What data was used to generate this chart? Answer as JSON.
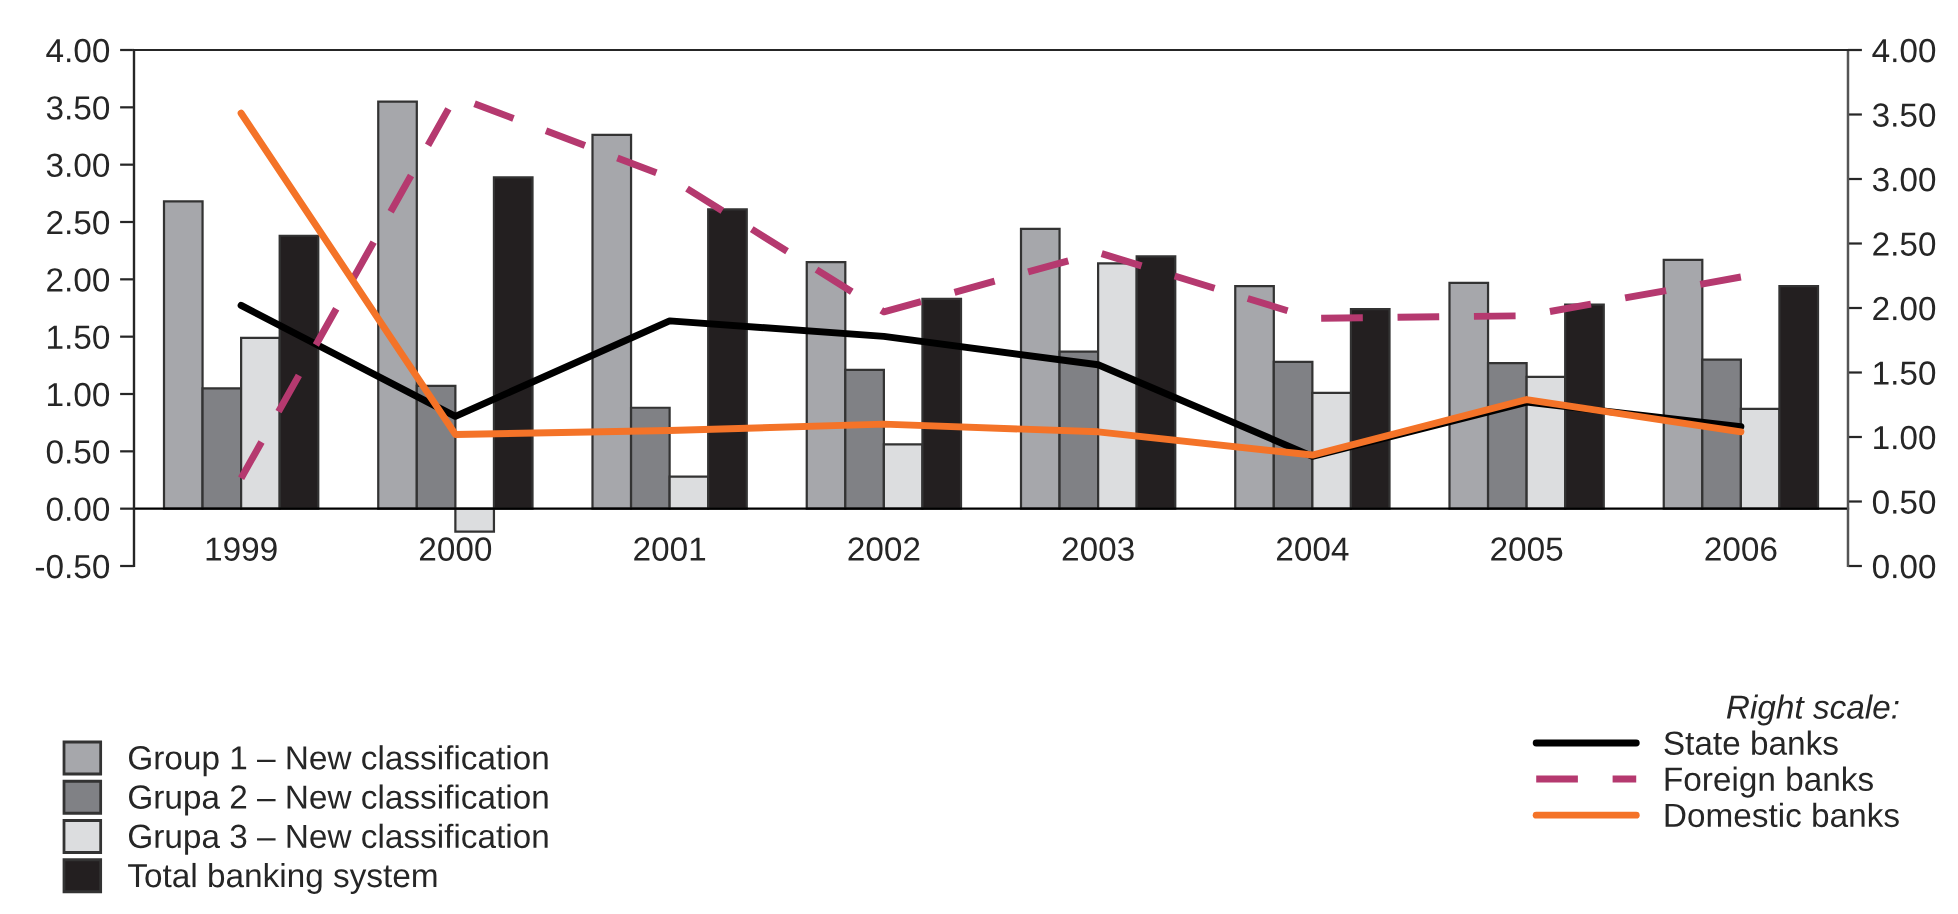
{
  "chart_data": {
    "type": "bar",
    "categories": [
      "1999",
      "2000",
      "2001",
      "2002",
      "2003",
      "2004",
      "2005",
      "2006"
    ],
    "ylim": [
      -0.5,
      4
    ],
    "yticks": [
      {
        "value": -0.5,
        "label": "-0.50"
      },
      {
        "value": 0,
        "label": "0.00"
      },
      {
        "value": 0.5,
        "label": "0.50"
      },
      {
        "value": 1,
        "label": "1.00"
      },
      {
        "value": 1.5,
        "label": "1.50"
      },
      {
        "value": 2,
        "label": "2.00"
      },
      {
        "value": 2.5,
        "label": "2.50"
      },
      {
        "value": 3,
        "label": "3.00"
      },
      {
        "value": 3.5,
        "label": "3.50"
      },
      {
        "value": 4,
        "label": "4.00"
      }
    ],
    "y2lim": [
      0,
      4
    ],
    "y2ticks": [
      {
        "value": 0,
        "label": "0.00"
      },
      {
        "value": 0.5,
        "label": "0.50"
      },
      {
        "value": 1,
        "label": "1.00"
      },
      {
        "value": 1.5,
        "label": "1.50"
      },
      {
        "value": 2,
        "label": "2.00"
      },
      {
        "value": 2.5,
        "label": "2.50"
      },
      {
        "value": 3,
        "label": "3.00"
      },
      {
        "value": 3.5,
        "label": "3.50"
      },
      {
        "value": 4,
        "label": "4.00"
      }
    ],
    "legend": "bottom",
    "legend_title": "Right scale:",
    "grid": false,
    "series": [
      {
        "name": "Group 1 – New classification",
        "color": "#a6a7ab",
        "values": [
          2.68,
          3.55,
          3.26,
          2.15,
          2.44,
          1.94,
          1.97,
          2.17
        ]
      },
      {
        "name": "Grupa 2 – New classification",
        "color": "#808185",
        "values": [
          1.05,
          1.07,
          0.88,
          1.21,
          1.37,
          1.28,
          1.27,
          1.3
        ]
      },
      {
        "name": "Grupa 3 – New classification",
        "color": "#dcdddf",
        "values": [
          1.49,
          -0.2,
          0.28,
          0.56,
          2.14,
          1.01,
          1.15,
          0.87
        ]
      },
      {
        "name": "Total banking system",
        "color": "#231f20",
        "values": [
          2.38,
          2.89,
          2.61,
          1.83,
          2.2,
          1.74,
          1.78,
          1.94
        ]
      },
      {
        "name": "State banks",
        "type": "line",
        "axis": "y2",
        "color": "#000000",
        "line_style": "solid",
        "values": [
          2.02,
          1.16,
          1.9,
          1.78,
          1.56,
          0.85,
          1.27,
          1.08
        ]
      },
      {
        "name": "Foreign banks",
        "type": "line",
        "axis": "y2",
        "color": "#b5396f",
        "line_style": "dashed",
        "values": [
          0.68,
          3.64,
          3.01,
          1.97,
          2.43,
          1.92,
          1.94,
          2.24
        ]
      },
      {
        "name": "Domestic banks",
        "type": "line",
        "axis": "y2",
        "color": "#f47328",
        "line_style": "solid",
        "values": [
          3.51,
          1.02,
          1.05,
          1.1,
          1.04,
          0.86,
          1.29,
          1.04
        ]
      }
    ]
  }
}
